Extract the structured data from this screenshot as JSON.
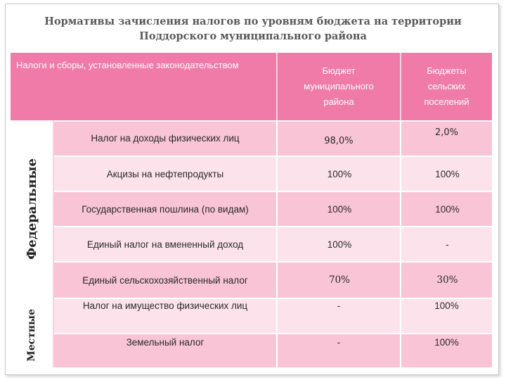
{
  "title": {
    "line1": "Нормативы зачисления налогов по уровням бюджета на территории",
    "line2": "Поддорского муниципального района"
  },
  "header": {
    "taxes": "Налоги и сборы, установленные законодательством",
    "col1": [
      "Бюджет",
      "муниципального",
      "района"
    ],
    "col2": [
      "Бюджеты",
      "сельских",
      "поселений"
    ]
  },
  "groups": {
    "federal": "Федеральные",
    "local": "Местные"
  },
  "rows": [
    {
      "name": "Налог на доходы физических лиц",
      "district": "98,0%",
      "settlements": "2,0%"
    },
    {
      "name": "Акцизы на нефтепродукты",
      "district": "100%",
      "settlements": "100%"
    },
    {
      "name": "Государственная пошлина (по видам)",
      "district": "100%",
      "settlements": "100%"
    },
    {
      "name": "Единый налог на вмененный доход",
      "district": "100%",
      "settlements": "-"
    },
    {
      "name": "Единый сельскохозяйственный налог",
      "district": "70%",
      "settlements": "30%"
    },
    {
      "name": "Налог на имущество физических лиц",
      "district": "-",
      "settlements": "100%"
    },
    {
      "name": "Земельный налог",
      "district": "-",
      "settlements": "100%"
    }
  ],
  "colors": {
    "header": "#f07aa8",
    "row_dark": "#f8c4d6",
    "row_light": "#fce3eb"
  }
}
